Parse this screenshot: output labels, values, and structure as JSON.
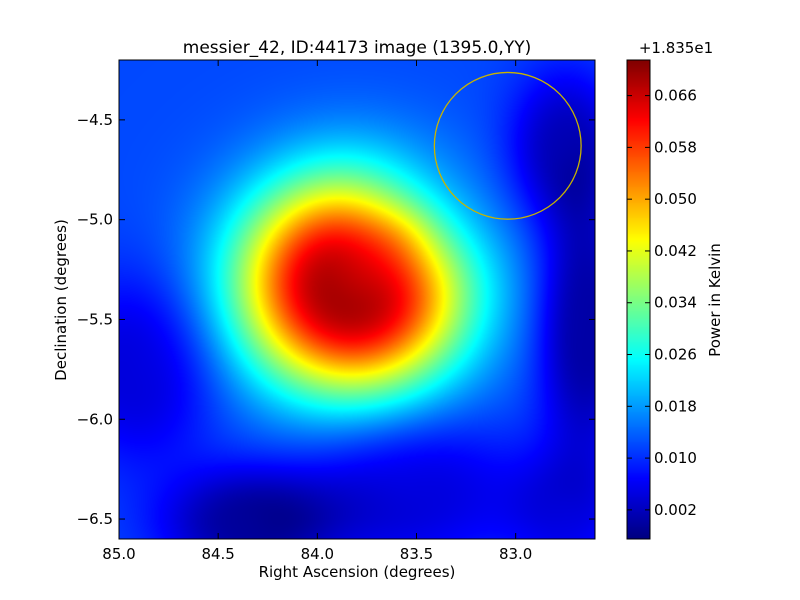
{
  "chart_data": {
    "type": "heatmap",
    "title": "messier_42, ID:44173 image (1395.0,YY)",
    "xlabel": "Right Ascension (degrees)",
    "ylabel": "Declination (degrees)",
    "xlim": [
      85.0,
      82.6
    ],
    "ylim": [
      -6.6,
      -4.2
    ],
    "xticks": [
      {
        "value": 85.0,
        "label": "85.0"
      },
      {
        "value": 84.5,
        "label": "84.5"
      },
      {
        "value": 84.0,
        "label": "84.0"
      },
      {
        "value": 83.5,
        "label": "83.5"
      },
      {
        "value": 83.0,
        "label": "83.0"
      }
    ],
    "yticks": [
      {
        "value": -4.5,
        "label": "−4.5"
      },
      {
        "value": -5.0,
        "label": "−5.0"
      },
      {
        "value": -5.5,
        "label": "−5.5"
      },
      {
        "value": -6.0,
        "label": "−6.0"
      },
      {
        "value": -6.5,
        "label": "−6.5"
      }
    ],
    "colorbar": {
      "label": "Power in Kelvin",
      "offset_label": "+1.835e1",
      "colormap": "jet",
      "range": [
        -0.0025,
        0.0715
      ],
      "ticks": [
        {
          "value": 0.002,
          "label": "0.002"
        },
        {
          "value": 0.01,
          "label": "0.010"
        },
        {
          "value": 0.018,
          "label": "0.018"
        },
        {
          "value": 0.026,
          "label": "0.026"
        },
        {
          "value": 0.034,
          "label": "0.034"
        },
        {
          "value": 0.042,
          "label": "0.042"
        },
        {
          "value": 0.05,
          "label": "0.050"
        },
        {
          "value": 0.058,
          "label": "0.058"
        },
        {
          "value": 0.066,
          "label": "0.066"
        }
      ]
    },
    "field": {
      "background": 0.012,
      "components": [
        {
          "ra": 83.82,
          "dec": -5.32,
          "amp": 0.058,
          "sigma_ra": 0.36,
          "sigma_dec": 0.34
        },
        {
          "ra": 83.55,
          "dec": -5.05,
          "amp": -0.008,
          "sigma_ra": 0.25,
          "sigma_dec": 0.22
        },
        {
          "ra": 83.55,
          "dec": -6.35,
          "amp": -0.008,
          "sigma_ra": 0.35,
          "sigma_dec": 0.25
        },
        {
          "ra": 84.34,
          "dec": -6.52,
          "amp": -0.012,
          "sigma_ra": 0.28,
          "sigma_dec": 0.18
        },
        {
          "ra": 84.9,
          "dec": -5.75,
          "amp": -0.008,
          "sigma_ra": 0.25,
          "sigma_dec": 0.3
        },
        {
          "ra": 82.75,
          "dec": -4.65,
          "amp": -0.01,
          "sigma_ra": 0.18,
          "sigma_dec": 0.25
        },
        {
          "ra": 82.65,
          "dec": -5.55,
          "amp": -0.012,
          "sigma_ra": 0.15,
          "sigma_dec": 0.4
        },
        {
          "ra": 82.75,
          "dec": -6.45,
          "amp": -0.006,
          "sigma_ra": 0.2,
          "sigma_dec": 0.2
        }
      ]
    },
    "annotations": [
      {
        "type": "circle",
        "ra": 83.04,
        "dec": -4.63,
        "radius_ra": 0.37,
        "color": "#c8b400"
      }
    ]
  }
}
